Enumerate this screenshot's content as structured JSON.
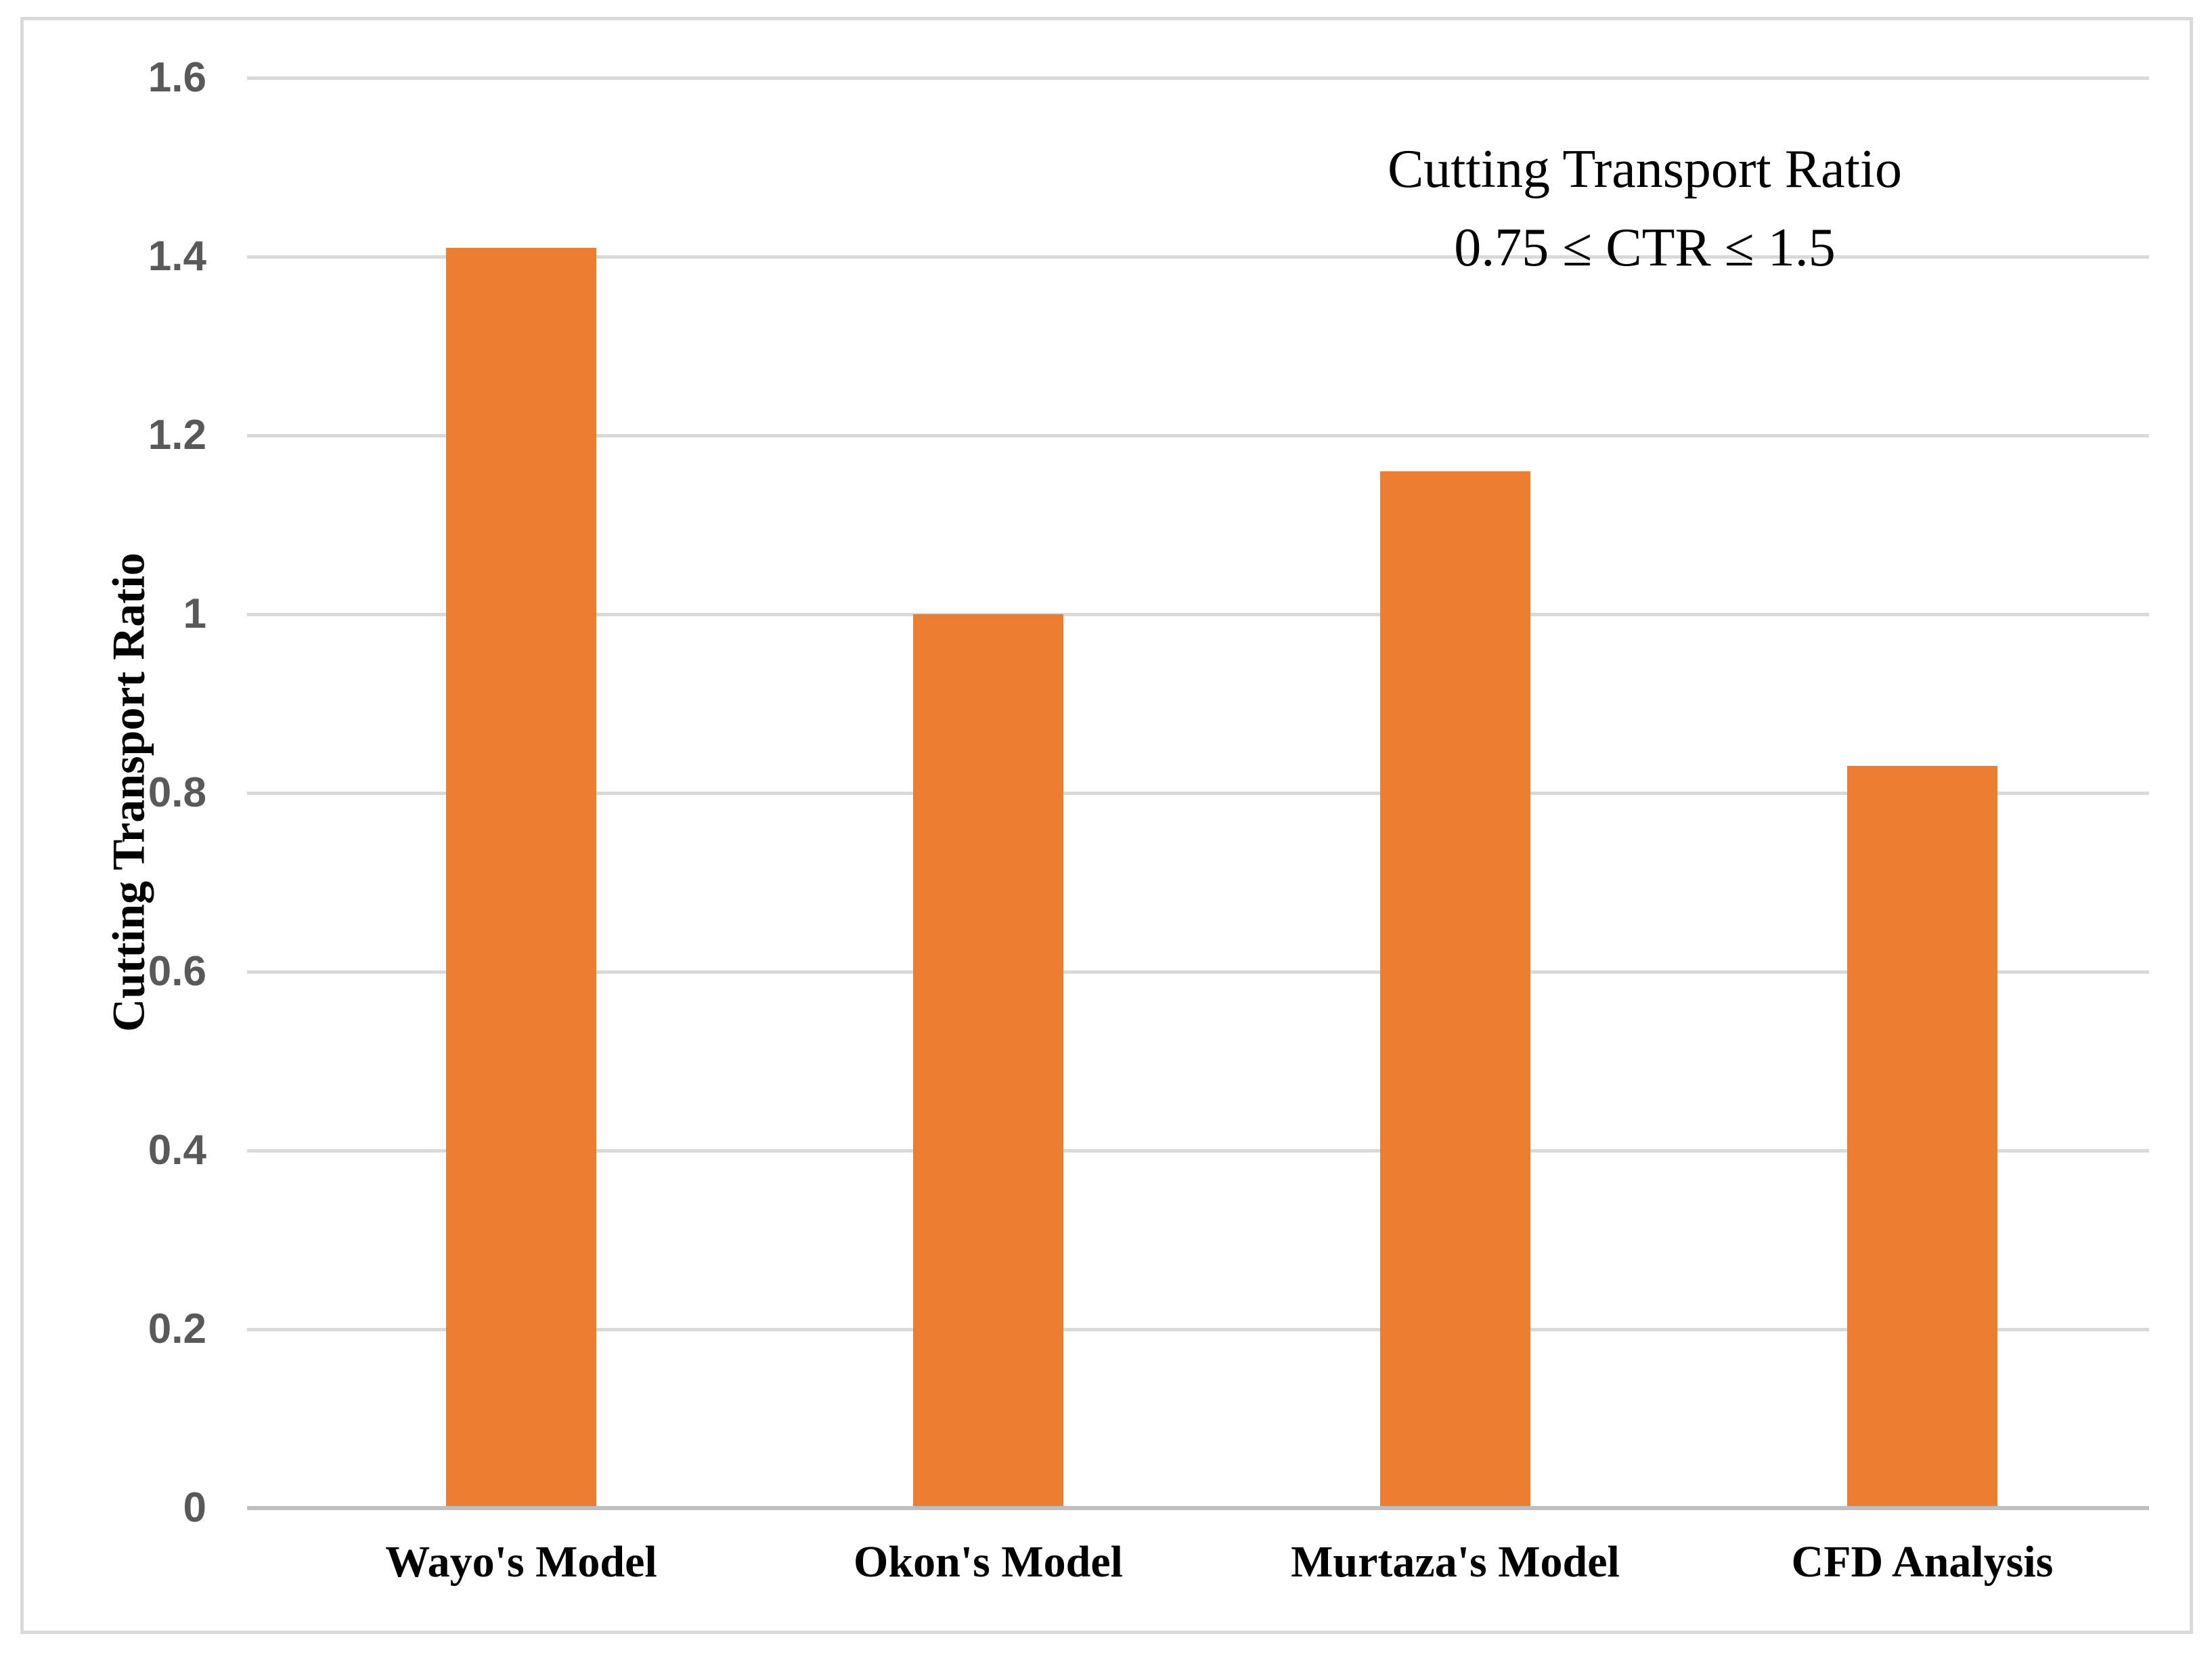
{
  "chart_data": {
    "type": "bar",
    "title": "",
    "categories": [
      "Wayo's Model",
      "Okon's Model",
      "Murtaza's Model",
      "CFD Analysis"
    ],
    "values": [
      1.41,
      1.0,
      1.16,
      0.83
    ],
    "xlabel": "",
    "ylabel": "Cutting Transport Ratio",
    "ylim": [
      0,
      1.6
    ],
    "ytick_values": [
      1.6,
      1.4,
      1.2,
      1,
      0.8,
      0.6,
      0.4,
      0.2,
      0
    ],
    "ytick_labels": [
      "1.6",
      "1.4",
      "1.2",
      "1",
      "0.8",
      "0.6",
      "0.4",
      "0.2",
      "0"
    ],
    "grid": true,
    "legend": "none",
    "annotation": {
      "line1": "Cutting Transport Ratio",
      "line2": "0.75 ≤ CTR ≤ 1.5"
    },
    "colors": {
      "bar": "#ed7d31",
      "gridline": "#d9d9d9",
      "axis_line": "#bfbfbf",
      "tick_label": "#595959",
      "text": "#000000",
      "frame_border": "#d9d9d9",
      "background": "#ffffff"
    }
  }
}
